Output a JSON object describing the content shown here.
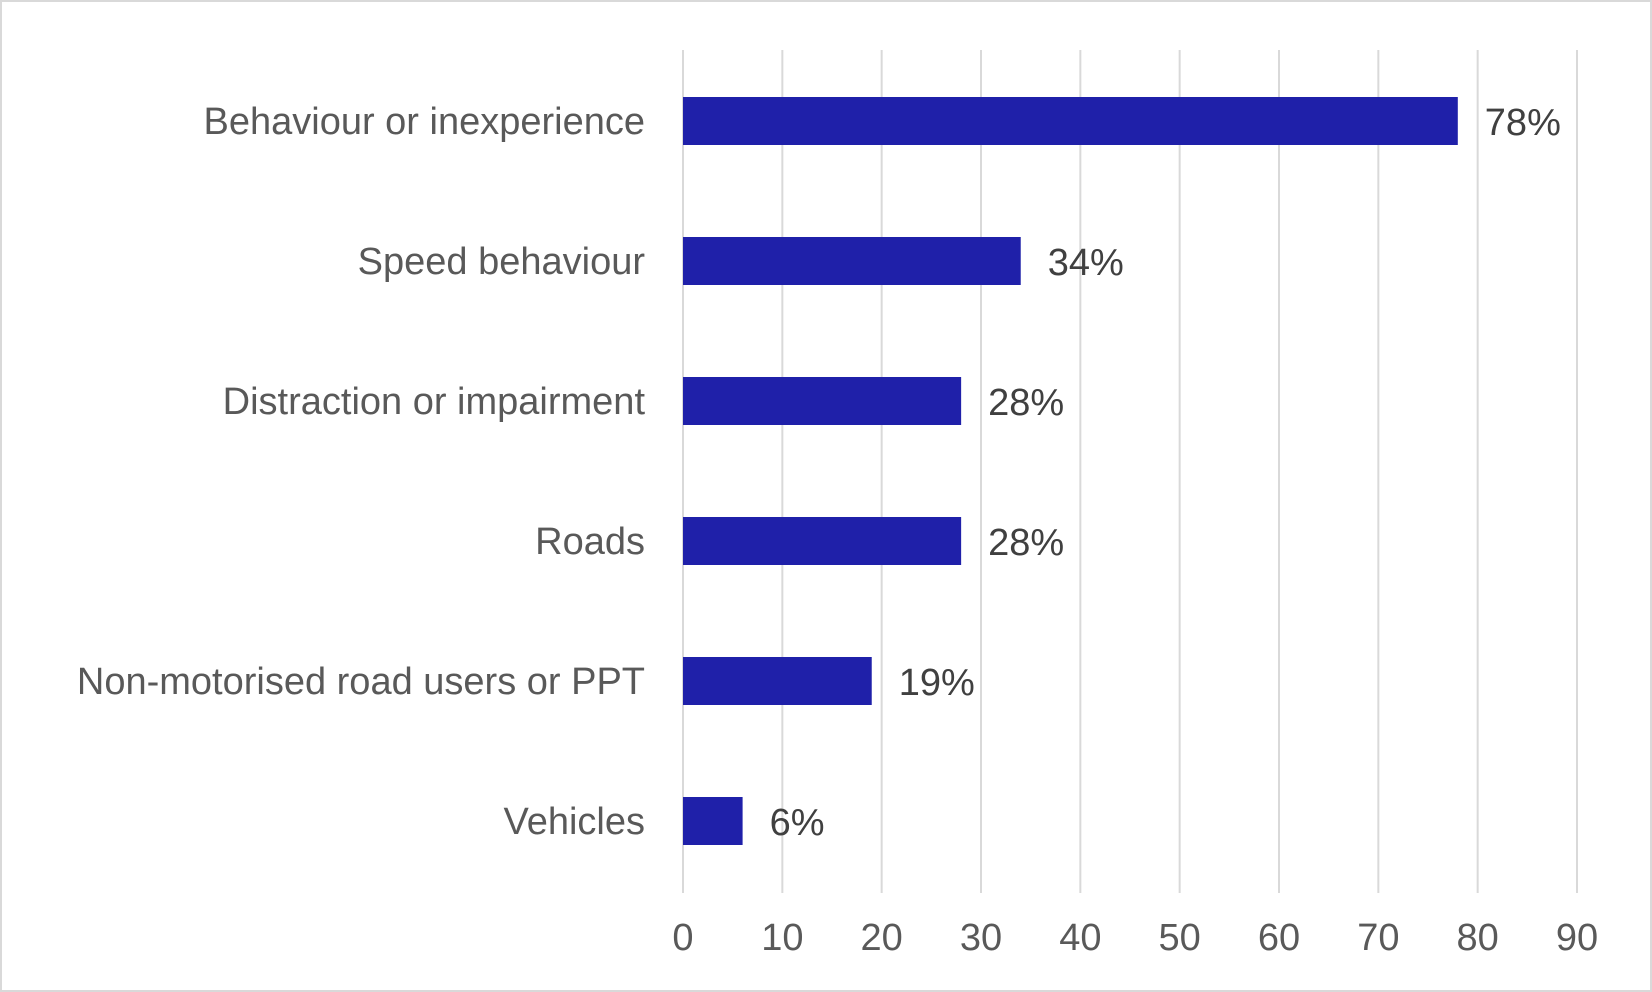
{
  "chart_data": {
    "type": "bar",
    "orientation": "horizontal",
    "title": "",
    "xlabel": "",
    "ylabel": "",
    "categories": [
      "Behaviour or inexperience",
      "Speed behaviour",
      "Distraction or impairment",
      "Roads",
      "Non-motorised road users or PPT",
      "Vehicles"
    ],
    "values": [
      78,
      34,
      28,
      28,
      19,
      6
    ],
    "data_labels": [
      "78%",
      "34%",
      "28%",
      "28%",
      "19%",
      "6%"
    ],
    "xlim": [
      0,
      90
    ],
    "x_ticks": [
      "0",
      "10",
      "20",
      "30",
      "40",
      "50",
      "60",
      "70",
      "80",
      "90"
    ],
    "grid": "vertical",
    "legend": "none",
    "bar_color": "#1f20a9",
    "grid_color": "#d9d9d9",
    "text_color": "#595959"
  }
}
